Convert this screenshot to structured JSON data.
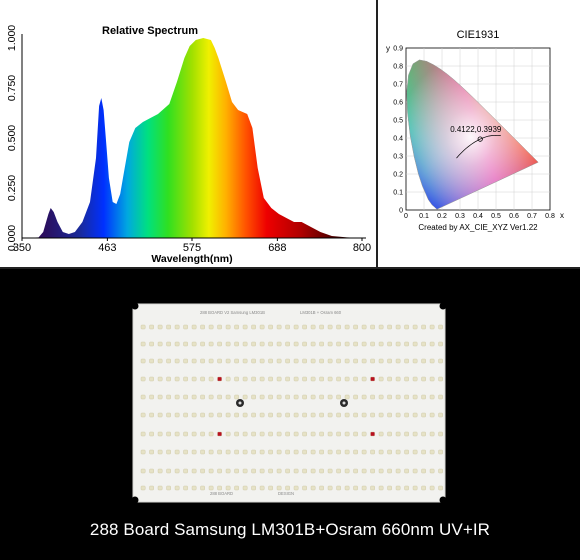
{
  "chart_data": [
    {
      "type": "area",
      "title": "Relative Spectrum",
      "xlabel": "Wavelength(nm)",
      "ylabel": "",
      "xlim": [
        350,
        800
      ],
      "ylim": [
        0,
        1.0
      ],
      "x_ticks": [
        "350",
        "463",
        "575",
        "688",
        "800"
      ],
      "y_ticks": [
        "0.000",
        "0.250",
        "0.500",
        "0.750",
        "1.000"
      ],
      "x": [
        350,
        372,
        378,
        385,
        388,
        392,
        397,
        404,
        412,
        420,
        430,
        440,
        448,
        452,
        455,
        458,
        462,
        465,
        470,
        475,
        480,
        485,
        492,
        500,
        510,
        520,
        530,
        545,
        555,
        565,
        572,
        580,
        590,
        600,
        605,
        610,
        620,
        628,
        636,
        642,
        648,
        655,
        662,
        670,
        680,
        690,
        700,
        710,
        720,
        730,
        745,
        760,
        780,
        800
      ],
      "values": [
        0,
        0.003,
        0.03,
        0.12,
        0.15,
        0.13,
        0.08,
        0.03,
        0.02,
        0.03,
        0.08,
        0.18,
        0.4,
        0.66,
        0.7,
        0.64,
        0.45,
        0.3,
        0.18,
        0.17,
        0.22,
        0.33,
        0.48,
        0.55,
        0.58,
        0.6,
        0.62,
        0.67,
        0.78,
        0.9,
        0.96,
        0.99,
        1.0,
        0.99,
        0.95,
        0.9,
        0.78,
        0.68,
        0.64,
        0.63,
        0.62,
        0.55,
        0.35,
        0.2,
        0.15,
        0.12,
        0.1,
        0.08,
        0.08,
        0.06,
        0.03,
        0.01,
        0.003,
        0
      ]
    },
    {
      "type": "scatter",
      "title": "CIE1931",
      "xlabel": "x",
      "ylabel": "y",
      "xlim": [
        0,
        0.8
      ],
      "ylim": [
        0,
        0.9
      ],
      "x_ticks": [
        "0",
        "0.1",
        "0.2",
        "0.3",
        "0.4",
        "0.5",
        "0.6",
        "0.7",
        "0.8"
      ],
      "y_ticks": [
        "0",
        "0.1",
        "0.2",
        "0.3",
        "0.4",
        "0.5",
        "0.6",
        "0.7",
        "0.8",
        "0.9"
      ],
      "point": {
        "x": 0.4122,
        "y": 0.3939,
        "label": "0.4122,0.3939"
      },
      "footer": "Created by AX_CIE_XYZ Ver1.22",
      "locus": [
        [
          0.1741,
          0.005
        ],
        [
          0.1738,
          0.0049
        ],
        [
          0.1703,
          0.0058
        ],
        [
          0.1666,
          0.0089
        ],
        [
          0.1566,
          0.0177
        ],
        [
          0.144,
          0.0297
        ],
        [
          0.1241,
          0.0578
        ],
        [
          0.0913,
          0.1327
        ],
        [
          0.0687,
          0.2007
        ],
        [
          0.0454,
          0.295
        ],
        [
          0.0235,
          0.4127
        ],
        [
          0.0082,
          0.5384
        ],
        [
          0.0039,
          0.6548
        ],
        [
          0.0139,
          0.7502
        ],
        [
          0.0389,
          0.812
        ],
        [
          0.0743,
          0.8338
        ],
        [
          0.1142,
          0.8262
        ],
        [
          0.1547,
          0.8059
        ],
        [
          0.1929,
          0.7816
        ],
        [
          0.2296,
          0.7543
        ],
        [
          0.2658,
          0.7243
        ],
        [
          0.3016,
          0.6923
        ],
        [
          0.3373,
          0.6589
        ],
        [
          0.3731,
          0.6245
        ],
        [
          0.4087,
          0.5896
        ],
        [
          0.4441,
          0.5547
        ],
        [
          0.4788,
          0.5202
        ],
        [
          0.5125,
          0.4866
        ],
        [
          0.5448,
          0.4544
        ],
        [
          0.5752,
          0.4242
        ],
        [
          0.6029,
          0.3965
        ],
        [
          0.627,
          0.3725
        ],
        [
          0.6482,
          0.3514
        ],
        [
          0.6658,
          0.334
        ],
        [
          0.6801,
          0.3197
        ],
        [
          0.6915,
          0.3083
        ],
        [
          0.7006,
          0.2993
        ],
        [
          0.7079,
          0.292
        ],
        [
          0.714,
          0.2859
        ],
        [
          0.719,
          0.2809
        ],
        [
          0.7347,
          0.2653
        ]
      ],
      "planckian": [
        [
          0.5268,
          0.4133
        ],
        [
          0.4985,
          0.4149
        ],
        [
          0.4763,
          0.4136
        ],
        [
          0.4585,
          0.4103
        ],
        [
          0.4369,
          0.4041
        ],
        [
          0.4122,
          0.3939
        ],
        [
          0.3804,
          0.3768
        ],
        [
          0.3608,
          0.3636
        ],
        [
          0.3457,
          0.3516
        ],
        [
          0.3324,
          0.341
        ],
        [
          0.3221,
          0.3318
        ],
        [
          0.3064,
          0.3166
        ],
        [
          0.2952,
          0.3048
        ],
        [
          0.2806,
          0.2883
        ]
      ]
    }
  ],
  "board": {
    "silk_1": "288 BOARD V2 Samsung LM301B",
    "silk_2": "LM301B + Osram 660",
    "silk_3": "288 BOARD",
    "silk_4": "DESIGN"
  },
  "caption": "288 Board Samsung LM301B+Osram 660nm UV+IR"
}
